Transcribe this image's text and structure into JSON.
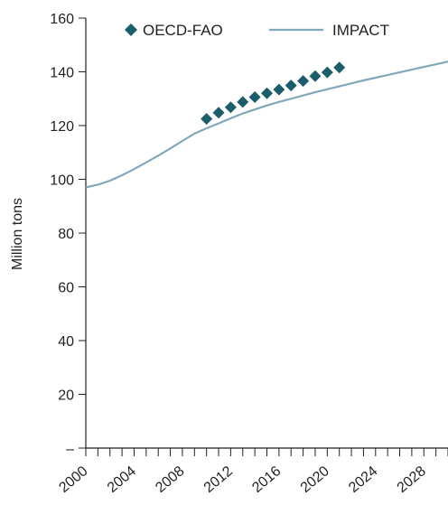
{
  "chart_data": {
    "type": "line",
    "ylabel": "Million tons",
    "ylim": [
      0,
      160
    ],
    "yticks": [
      {
        "value": 0,
        "label": "–"
      },
      {
        "value": 20,
        "label": "20"
      },
      {
        "value": 40,
        "label": "40"
      },
      {
        "value": 60,
        "label": "60"
      },
      {
        "value": 80,
        "label": "80"
      },
      {
        "value": 100,
        "label": "100"
      },
      {
        "value": 120,
        "label": "120"
      },
      {
        "value": 140,
        "label": "140"
      },
      {
        "value": 160,
        "label": "160"
      }
    ],
    "xlim": [
      2000,
      2030
    ],
    "xticks": [
      2000,
      2001,
      2002,
      2003,
      2004,
      2005,
      2006,
      2007,
      2008,
      2009,
      2010,
      2011,
      2012,
      2013,
      2014,
      2015,
      2016,
      2017,
      2018,
      2019,
      2020,
      2021,
      2022,
      2023,
      2024,
      2025,
      2026,
      2027,
      2028,
      2029,
      2030
    ],
    "xticklabels": [
      "2000",
      "2004",
      "2008",
      "2012",
      "2016",
      "2020",
      "2024",
      "2028"
    ],
    "legend_position": "top",
    "series": [
      {
        "name": "OECD-FAO",
        "marker": "diamond",
        "color": "#1b5e6b",
        "x": [
          2010,
          2011,
          2012,
          2013,
          2014,
          2015,
          2016,
          2017,
          2018,
          2019,
          2020,
          2021
        ],
        "y": [
          122.5,
          124.8,
          126.8,
          128.8,
          130.6,
          132.0,
          133.4,
          134.9,
          136.6,
          138.4,
          139.8,
          141.6
        ]
      },
      {
        "name": "IMPACT",
        "marker": "line",
        "color": "#7fa9b9",
        "x": [
          2000,
          2001,
          2002,
          2003,
          2004,
          2005,
          2006,
          2007,
          2008,
          2009,
          2010,
          2011,
          2012,
          2013,
          2014,
          2015,
          2016,
          2017,
          2018,
          2019,
          2020,
          2021,
          2022,
          2023,
          2024,
          2025,
          2026,
          2027,
          2028,
          2029,
          2030
        ],
        "y": [
          97.0,
          98.0,
          99.5,
          101.5,
          103.8,
          106.3,
          108.8,
          111.5,
          114.3,
          117.0,
          119.0,
          120.8,
          122.7,
          124.5,
          126.0,
          127.5,
          128.8,
          130.0,
          131.2,
          132.4,
          133.5,
          134.6,
          135.7,
          136.8,
          137.8,
          138.8,
          139.8,
          140.8,
          141.8,
          142.8,
          143.8
        ]
      }
    ]
  }
}
